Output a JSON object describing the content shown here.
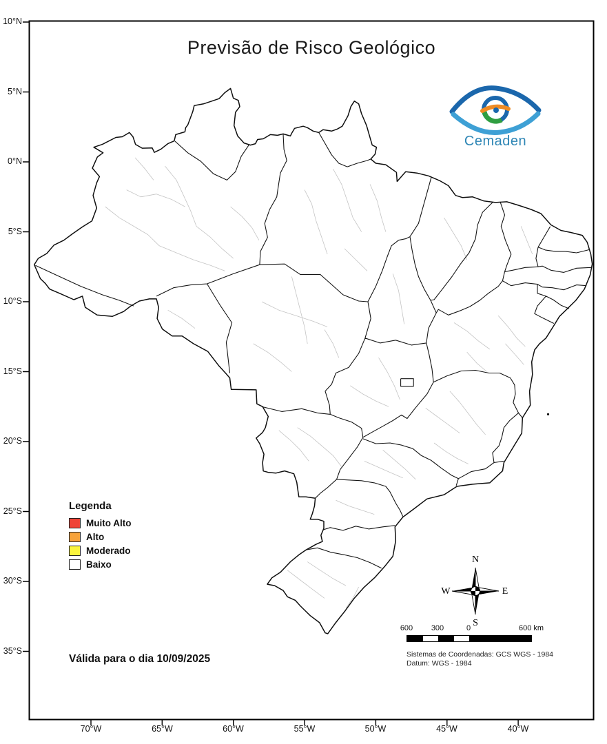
{
  "title": "Previsão de Risco Geológico",
  "logo": {
    "wordmark": "Cemaden",
    "wordmark_color": "#2e86b5"
  },
  "legend": {
    "heading": "Legenda",
    "items": [
      {
        "label": "Muito Alto",
        "color": "#ef4337"
      },
      {
        "label": "Alto",
        "color": "#f7a33b"
      },
      {
        "label": "Moderado",
        "color": "#fbf53d"
      },
      {
        "label": "Baixo",
        "color": "#ffffff"
      }
    ]
  },
  "validity": "Válida para o dia 10/09/2025",
  "axes": {
    "latitude": [
      "10°N",
      "5°N",
      "0°N",
      "5°S",
      "10°S",
      "15°S",
      "20°S",
      "25°S",
      "30°S",
      "35°S"
    ],
    "longitude": [
      "70°W",
      "65°W",
      "60°W",
      "55°W",
      "50°W",
      "45°W",
      "40°W"
    ]
  },
  "compass": {
    "n": "N",
    "s": "S",
    "e": "E",
    "w": "W"
  },
  "scale_bar": {
    "labels": [
      "600",
      "300",
      "0",
      "600 km"
    ]
  },
  "coordinate_system": {
    "line1": "Sistemas de Coordenadas: GCS WGS - 1984",
    "line2": "Datum: WGS - 1984"
  }
}
